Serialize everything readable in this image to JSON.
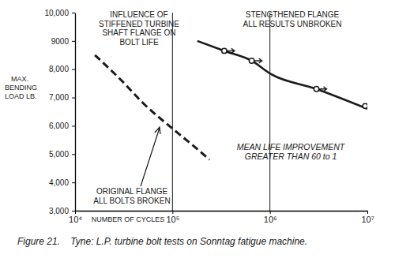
{
  "chart_data": {
    "type": "line",
    "title": "Figure 21.    Tyne: L.P. turbine bolt tests on Sonntag fatigue machine.",
    "xlabel": "NUMBER OF CYCLES",
    "ylabel": [
      "MAX.",
      "BENDING",
      "LOAD LB."
    ],
    "log": "x",
    "grid": true,
    "xlim": [
      10000,
      10000000
    ],
    "xticks": [
      {
        "value": 10000,
        "label": "10⁴"
      },
      {
        "value": 100000,
        "label": "10⁵"
      },
      {
        "value": 1000000,
        "label": "10⁶"
      },
      {
        "value": 10000000,
        "label": "10⁷"
      }
    ],
    "ylim": [
      3000,
      10000
    ],
    "yticks": [
      {
        "value": 3000,
        "label": "3,000"
      },
      {
        "value": 4000,
        "label": "4,000"
      },
      {
        "value": 5000,
        "label": "5,000"
      },
      {
        "value": 6000,
        "label": "6,000"
      },
      {
        "value": 7000,
        "label": "7,000"
      },
      {
        "value": 8000,
        "label": "8,000"
      },
      9000,
      {
        "value": 10000,
        "label": "10,000"
      }
    ],
    "series": [
      {
        "type": "line",
        "line_style": "dashed",
        "color": "#1a1a1a",
        "x": [
          16000,
          30000,
          50000,
          100000,
          170000,
          240000
        ],
        "values": [
          8500,
          7600,
          6800,
          5900,
          5250,
          4800
        ]
      },
      {
        "type": "line",
        "line_style": "solid",
        "color": "#1a1a1a",
        "x": [
          180000,
          340000,
          650000,
          1000000,
          3000000,
          10000000
        ],
        "values": [
          9000,
          8650,
          8300,
          7850,
          7300,
          6600
        ]
      },
      {
        "type": "scatter",
        "marker": "circle",
        "color": "#1a1a1a",
        "x": [
          340000,
          650000,
          3000000,
          9500000
        ],
        "values": [
          8650,
          8300,
          7300,
          6700
        ]
      }
    ],
    "annotations": [
      [
        "INFLUENCE OF",
        "STIFFENED TURBINE",
        "SHAFT FLANGE ON",
        "BOLT LIFE"
      ],
      [
        "STENGTHENED FLANGE",
        "ALL RESULTS UNBROKEN"
      ],
      [
        "MEAN LIFE IMPROVEMENT",
        "GREATER THAN 60 to 1"
      ],
      [
        "ORIGINAL FLANGE",
        "ALL BOLTS BROKEN"
      ]
    ]
  }
}
